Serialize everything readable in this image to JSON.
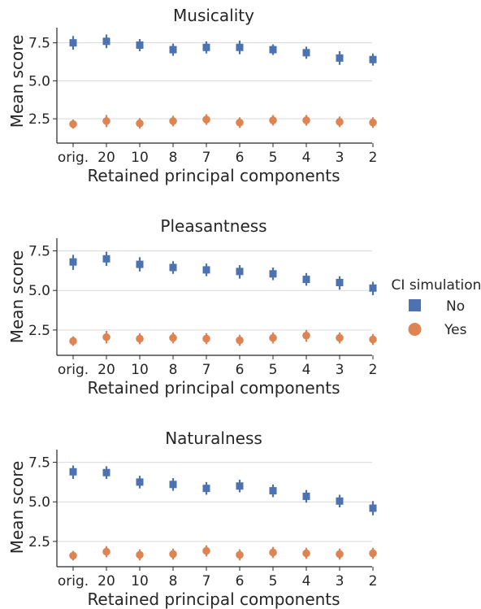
{
  "legend": {
    "title": "CI simulation",
    "entries": [
      {
        "label": "No",
        "marker": "square",
        "color": "#4c72b0"
      },
      {
        "label": "Yes",
        "marker": "circle",
        "color": "#dd8452"
      }
    ],
    "placement": "right"
  },
  "chart_data": [
    {
      "type": "scatter",
      "title": "Musicality",
      "xlabel": "Retained principal components",
      "ylabel": "Mean score",
      "categories": [
        "orig.",
        "20",
        "10",
        "8",
        "7",
        "6",
        "5",
        "4",
        "3",
        "2"
      ],
      "yticks": [
        "2.5",
        "5.0",
        "7.5"
      ],
      "ylim": [
        0.9,
        8.5
      ],
      "grid": "horizontal",
      "series": [
        {
          "name": "No",
          "marker": "square",
          "color": "#4c72b0",
          "values": [
            7.5,
            7.6,
            7.35,
            7.05,
            7.2,
            7.2,
            7.05,
            6.85,
            6.5,
            6.4
          ],
          "ci_low": [
            7.05,
            7.15,
            6.95,
            6.65,
            6.8,
            6.75,
            6.7,
            6.45,
            6.05,
            6.0
          ],
          "ci_high": [
            7.95,
            8.05,
            7.75,
            7.45,
            7.6,
            7.65,
            7.4,
            7.25,
            6.95,
            6.8
          ]
        },
        {
          "name": "Yes",
          "marker": "circle",
          "color": "#dd8452",
          "values": [
            2.15,
            2.35,
            2.2,
            2.35,
            2.45,
            2.25,
            2.4,
            2.4,
            2.3,
            2.25
          ],
          "ci_low": [
            1.85,
            1.95,
            1.85,
            2.0,
            2.1,
            1.9,
            2.05,
            2.05,
            1.95,
            1.9
          ],
          "ci_high": [
            2.45,
            2.75,
            2.55,
            2.7,
            2.8,
            2.6,
            2.75,
            2.75,
            2.65,
            2.6
          ]
        }
      ]
    },
    {
      "type": "scatter",
      "title": "Pleasantness",
      "xlabel": "Retained principal components",
      "ylabel": "Mean score",
      "categories": [
        "orig.",
        "20",
        "10",
        "8",
        "7",
        "6",
        "5",
        "4",
        "3",
        "2"
      ],
      "yticks": [
        "2.5",
        "5.0",
        "7.5"
      ],
      "ylim": [
        0.9,
        8.3
      ],
      "grid": "horizontal",
      "series": [
        {
          "name": "No",
          "marker": "square",
          "color": "#4c72b0",
          "values": [
            6.8,
            7.0,
            6.65,
            6.45,
            6.3,
            6.2,
            6.05,
            5.7,
            5.5,
            5.15
          ],
          "ci_low": [
            6.3,
            6.55,
            6.2,
            6.05,
            5.9,
            5.75,
            5.65,
            5.3,
            5.05,
            4.7
          ],
          "ci_high": [
            7.25,
            7.45,
            7.1,
            6.85,
            6.7,
            6.6,
            6.45,
            6.1,
            5.9,
            5.55
          ]
        },
        {
          "name": "Yes",
          "marker": "circle",
          "color": "#dd8452",
          "values": [
            1.8,
            2.05,
            1.95,
            2.0,
            1.95,
            1.85,
            2.0,
            2.15,
            2.0,
            1.9
          ],
          "ci_low": [
            1.5,
            1.65,
            1.6,
            1.65,
            1.6,
            1.5,
            1.65,
            1.75,
            1.65,
            1.55
          ],
          "ci_high": [
            2.1,
            2.45,
            2.3,
            2.35,
            2.3,
            2.2,
            2.35,
            2.5,
            2.35,
            2.25
          ]
        }
      ]
    },
    {
      "type": "scatter",
      "title": "Naturalness",
      "xlabel": "Retained principal components",
      "ylabel": "Mean score",
      "categories": [
        "orig.",
        "20",
        "10",
        "8",
        "7",
        "6",
        "5",
        "4",
        "3",
        "2"
      ],
      "yticks": [
        "2.5",
        "5.0",
        "7.5"
      ],
      "ylim": [
        0.9,
        8.3
      ],
      "grid": "horizontal",
      "series": [
        {
          "name": "No",
          "marker": "square",
          "color": "#4c72b0",
          "values": [
            6.9,
            6.85,
            6.25,
            6.1,
            5.85,
            6.0,
            5.7,
            5.35,
            5.05,
            4.6
          ],
          "ci_low": [
            6.45,
            6.45,
            5.85,
            5.7,
            5.45,
            5.6,
            5.3,
            4.95,
            4.65,
            4.15
          ],
          "ci_high": [
            7.3,
            7.25,
            6.65,
            6.5,
            6.25,
            6.4,
            6.1,
            5.75,
            5.45,
            5.05
          ]
        },
        {
          "name": "Yes",
          "marker": "circle",
          "color": "#dd8452",
          "values": [
            1.6,
            1.85,
            1.65,
            1.7,
            1.9,
            1.65,
            1.8,
            1.75,
            1.7,
            1.75
          ],
          "ci_low": [
            1.3,
            1.5,
            1.3,
            1.35,
            1.55,
            1.3,
            1.45,
            1.4,
            1.35,
            1.4
          ],
          "ci_high": [
            1.9,
            2.2,
            2.0,
            2.05,
            2.25,
            2.0,
            2.15,
            2.1,
            2.05,
            2.1
          ]
        }
      ]
    }
  ]
}
